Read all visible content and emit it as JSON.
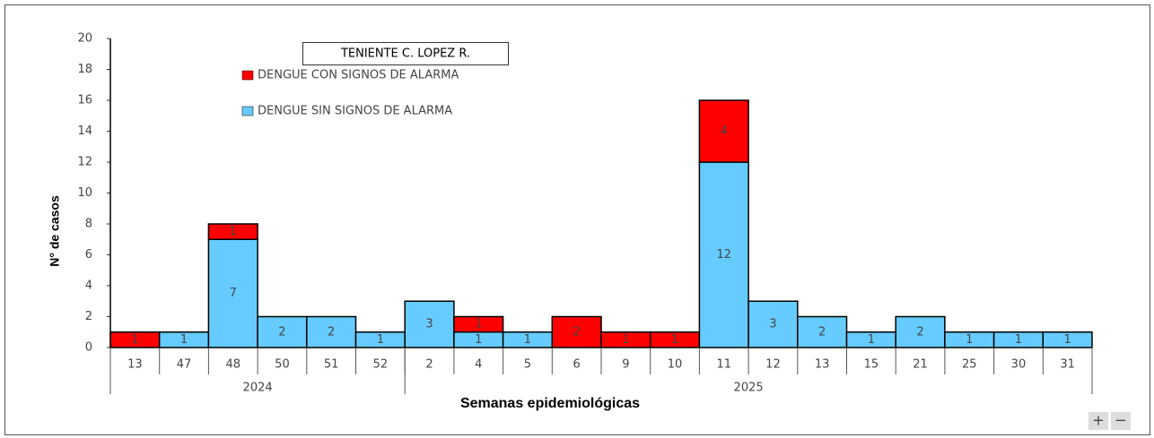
{
  "chart_data": {
    "type": "stacked-bar",
    "legend_title": "TENIENTE C. LOPEZ R.",
    "y_label": "N° de casos",
    "x_label": "Semanas epidemiológicas",
    "categories": [
      "13",
      "47",
      "48",
      "50",
      "51",
      "52",
      "2",
      "4",
      "5",
      "6",
      "9",
      "10",
      "11",
      "12",
      "13",
      "15",
      "21",
      "25",
      "30",
      "31"
    ],
    "x_groups": [
      {
        "label": "2024",
        "span": 6
      },
      {
        "label": "2025",
        "span": 14
      }
    ],
    "series": [
      {
        "name": "DENGUE SIN SIGNOS DE ALARMA",
        "color": "#66ccff",
        "values": [
          0,
          1,
          7,
          2,
          2,
          1,
          3,
          1,
          1,
          0,
          0,
          0,
          12,
          3,
          2,
          1,
          2,
          1,
          1,
          1
        ]
      },
      {
        "name": "DENGUE CON SIGNOS DE ALARMA",
        "color": "#ff0000",
        "values": [
          1,
          0,
          1,
          0,
          0,
          0,
          0,
          1,
          0,
          2,
          1,
          1,
          4,
          0,
          0,
          0,
          0,
          0,
          0,
          0
        ]
      }
    ],
    "ylim": [
      0,
      20
    ],
    "yticks": [
      0,
      2,
      4,
      6,
      8,
      10,
      12,
      14,
      16,
      18,
      20
    ],
    "grid": false,
    "controls": [
      "+",
      "−"
    ]
  }
}
